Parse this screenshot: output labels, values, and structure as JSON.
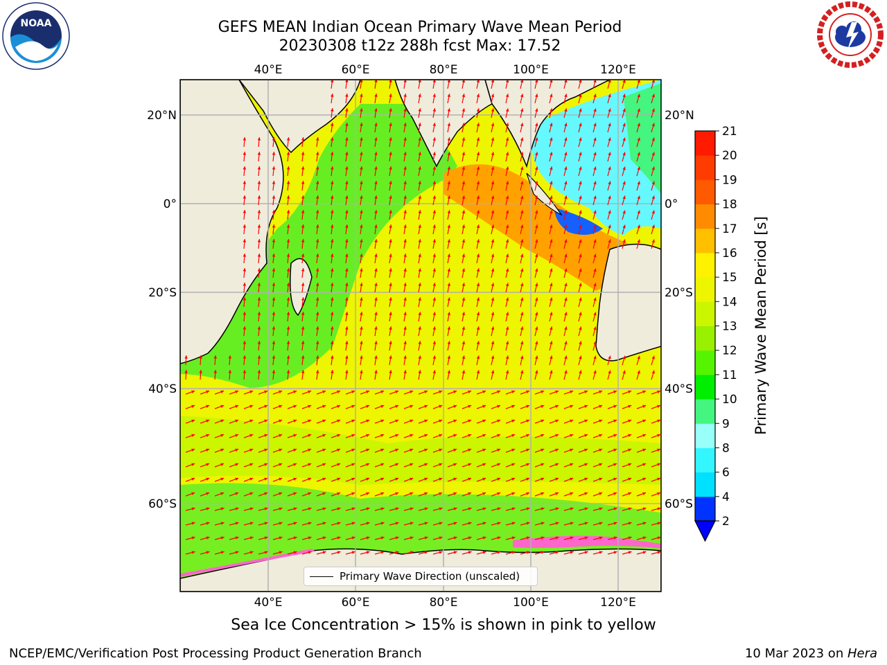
{
  "header": {
    "title_line1": "GEFS MEAN Indian Ocean Primary Wave Mean Period",
    "title_line2": "20230308 t12z 288h fcst   Max: 17.52"
  },
  "logos": {
    "left": {
      "icon": "noaa-logo",
      "text": "NOAA"
    },
    "right": {
      "icon": "national-weather-service-logo"
    }
  },
  "map": {
    "lon_labels": [
      "40°E",
      "60°E",
      "80°E",
      "100°E",
      "120°E"
    ],
    "lat_labels": [
      "20°N",
      "0°",
      "20°S",
      "40°S",
      "60°S"
    ],
    "legend_label": "Primary Wave Direction (unscaled)",
    "arrow_color": "#ff0000",
    "land_color": "#efecdc"
  },
  "colorbar": {
    "title": "Primary Wave Mean Period [s]",
    "ticks": [
      "2",
      "4",
      "6",
      "8",
      "9",
      "10",
      "11",
      "12",
      "13",
      "14",
      "15",
      "16",
      "17",
      "18",
      "19",
      "20",
      "21"
    ],
    "colors": [
      "#0033ff",
      "#00e0ff",
      "#33f6ff",
      "#99fff9",
      "#44f580",
      "#00ee00",
      "#55f400",
      "#99f000",
      "#ccf500",
      "#eef500",
      "#fff200",
      "#ffc000",
      "#ff8c00",
      "#ff5a00",
      "#ff3c00",
      "#ff1a00"
    ],
    "extend_color": "#0000ff"
  },
  "footnote": "Sea Ice Concentration > 15% is shown in pink to yellow",
  "footer": {
    "left": "NCEP/EMC/Verification Post Processing Product Generation Branch",
    "right_prefix": "10 Mar 2023 on ",
    "right_host": "Hera"
  }
}
